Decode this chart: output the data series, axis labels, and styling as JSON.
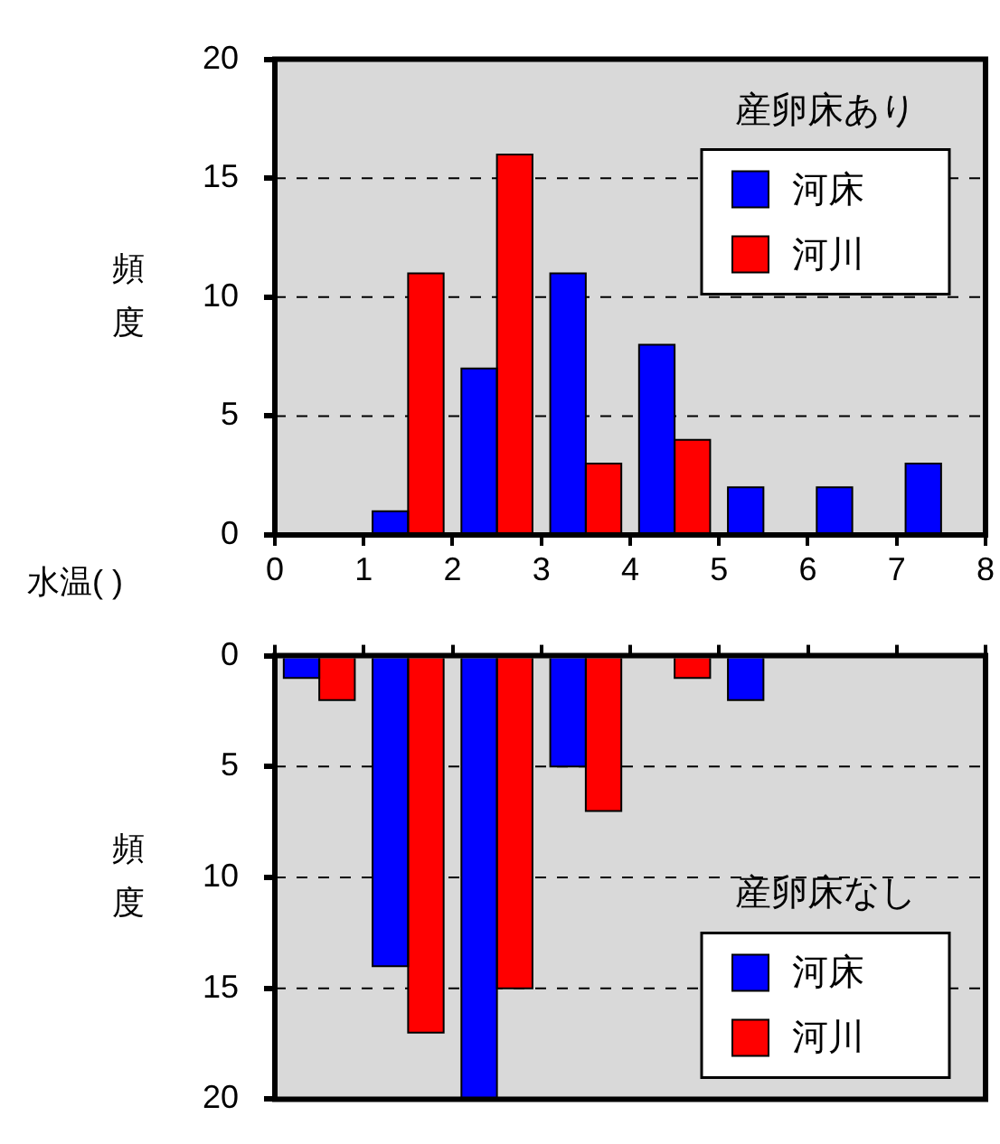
{
  "chart_data": [
    {
      "type": "histogram",
      "ylabel": "頻度",
      "xlabel": "水温( )",
      "annotations": [
        "産卵床あり"
      ],
      "bins": [
        0,
        1,
        2,
        3,
        4,
        5,
        6,
        7,
        8
      ],
      "xlim": [
        0,
        8
      ],
      "xticks": [
        0,
        1,
        2,
        3,
        4,
        5,
        6,
        7,
        8
      ],
      "ylim": [
        0,
        20
      ],
      "yticks": [
        0,
        5,
        10,
        15,
        20
      ],
      "grid": "y",
      "legend": "top right",
      "series": [
        {
          "name": "河床",
          "color": "#0000ff",
          "values": [
            0,
            1,
            7,
            11,
            8,
            2,
            2,
            3
          ]
        },
        {
          "name": "河川",
          "color": "#ff0000",
          "values": [
            0,
            11,
            16,
            3,
            4,
            0,
            0,
            0
          ]
        }
      ]
    },
    {
      "type": "histogram",
      "ylabel": "頻度",
      "annotations": [
        "産卵床なし"
      ],
      "bins": [
        0,
        1,
        2,
        3,
        4,
        5,
        6,
        7,
        8
      ],
      "xlim": [
        0,
        8
      ],
      "xticks": [
        0,
        1,
        2,
        3,
        4,
        5,
        6,
        7,
        8
      ],
      "ylim": [
        20,
        0
      ],
      "yticks": [
        0,
        5,
        10,
        15,
        20
      ],
      "grid": "y",
      "legend": "bottom right",
      "tick_labels": "y",
      "series": [
        {
          "name": "河床",
          "color": "#0000ff",
          "values": [
            1,
            14,
            20,
            5,
            0,
            2,
            0,
            0
          ]
        },
        {
          "name": "河川",
          "color": "#ff0000",
          "values": [
            2,
            17,
            15,
            7,
            1,
            0,
            0,
            0
          ]
        }
      ]
    }
  ]
}
